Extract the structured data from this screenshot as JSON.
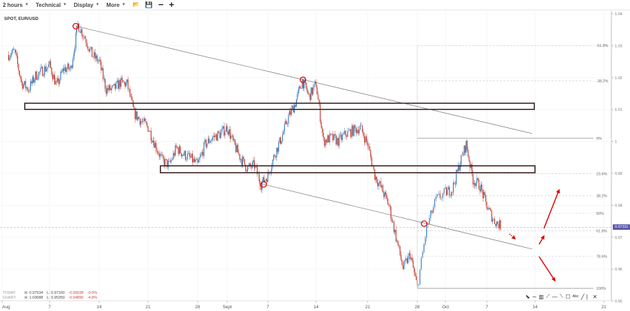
{
  "toolbar": {
    "interval": "2 hours",
    "technical": "Technical",
    "display": "Display",
    "more": "More",
    "icons": [
      "folder-open-icon",
      "save-icon",
      "zoom-out-icon",
      "zoom-in-icon"
    ]
  },
  "chart_header": {
    "symbol": "SPOT, EUR/USD"
  },
  "stats": {
    "today": {
      "label": "TODAY:",
      "high": "H: 0.97534",
      "low": "L: 0.97160",
      "change": "-0.00038",
      "pct": "-0.0%"
    },
    "chart": {
      "label": "CHART:",
      "high": "H: 1.03688",
      "low": "L: 0.95359",
      "change": "-0.04890",
      "pct": "-4.8%"
    }
  },
  "current_price": "0.97311",
  "colors": {
    "up": "#3a7ab8",
    "down": "#c0392b",
    "annotation": "#e00000",
    "price_tag": "#5a5aa8",
    "box": "#3a2020"
  },
  "chart_data": {
    "type": "candlestick",
    "title": "SPOT, EUR/USD",
    "interval": "2 hours",
    "ylim": [
      0.95,
      1.04
    ],
    "y_ticks": [
      "1.04",
      "1.03",
      "1.02",
      "1.01",
      "1",
      "0.99",
      "0.98",
      "0.97",
      "0.96",
      "0.95"
    ],
    "x_ticks": [
      "Aug",
      "7",
      "14",
      "21",
      "28",
      "Sept",
      "7",
      "14",
      "21",
      "28",
      "Oct",
      "7",
      "14",
      "21"
    ],
    "grid": true,
    "price_path": [
      [
        "2022-08-01",
        1.0271
      ],
      [
        "2022-08-02",
        1.0281
      ],
      [
        "2022-08-03",
        1.0184
      ],
      [
        "2022-08-04",
        1.0163
      ],
      [
        "2022-08-05",
        1.0206
      ],
      [
        "2022-08-07",
        1.0238
      ],
      [
        "2022-08-08",
        1.0174
      ],
      [
        "2022-08-09",
        1.0228
      ],
      [
        "2022-08-10",
        1.0228
      ],
      [
        "2022-08-11",
        1.0366
      ],
      [
        "2022-08-12",
        1.0325
      ],
      [
        "2022-08-13",
        1.0271
      ],
      [
        "2022-08-14",
        1.025
      ],
      [
        "2022-08-15",
        1.0163
      ],
      [
        "2022-08-16",
        1.0163
      ],
      [
        "2022-08-17",
        1.0184
      ],
      [
        "2022-08-18",
        1.018
      ],
      [
        "2022-08-19",
        1.0088
      ],
      [
        "2022-08-20",
        1.0065
      ],
      [
        "2022-08-21",
        1.0044
      ],
      [
        "2022-08-22",
        0.999
      ],
      [
        "2022-08-23",
        0.994
      ],
      [
        "2022-08-24",
        0.9926
      ],
      [
        "2022-08-25",
        0.998
      ],
      [
        "2022-08-26",
        0.996
      ],
      [
        "2022-08-27",
        0.9947
      ],
      [
        "2022-08-28",
        0.9926
      ],
      [
        "2022-08-29",
        0.999
      ],
      [
        "2022-08-30",
        1.0012
      ],
      [
        "2022-08-31",
        1.0023
      ],
      [
        "2022-09-01",
        1.0044
      ],
      [
        "2022-09-02",
        0.999
      ],
      [
        "2022-09-03",
        0.9947
      ],
      [
        "2022-09-04",
        0.9915
      ],
      [
        "2022-09-05",
        0.9926
      ],
      [
        "2022-09-06",
        0.9866
      ],
      [
        "2022-09-07",
        0.9894
      ],
      [
        "2022-09-08",
        0.996
      ],
      [
        "2022-09-09",
        1.0012
      ],
      [
        "2022-09-10",
        1.0077
      ],
      [
        "2022-09-11",
        1.012
      ],
      [
        "2022-09-12",
        1.0191
      ],
      [
        "2022-09-13",
        1.0141
      ],
      [
        "2022-09-14",
        1.018
      ],
      [
        "2022-09-15",
        1.0001
      ],
      [
        "2022-09-16",
        1.0012
      ],
      [
        "2022-09-17",
        1.0001
      ],
      [
        "2022-09-18",
        1.0023
      ],
      [
        "2022-09-19",
        1.0034
      ],
      [
        "2022-09-20",
        1.0044
      ],
      [
        "2022-09-21",
        0.9991
      ],
      [
        "2022-09-22",
        0.9894
      ],
      [
        "2022-09-23",
        0.985
      ],
      [
        "2022-09-24",
        0.98
      ],
      [
        "2022-09-25",
        0.97
      ],
      [
        "2022-09-26",
        0.9603
      ],
      [
        "2022-09-27",
        0.9646
      ],
      [
        "2022-09-28",
        0.9542
      ],
      [
        "2022-09-29",
        0.973
      ],
      [
        "2022-09-30",
        0.9818
      ],
      [
        "2022-10-01",
        0.984
      ],
      [
        "2022-10-02",
        0.985
      ],
      [
        "2022-10-03",
        0.9926
      ],
      [
        "2022-10-04",
        0.9991
      ],
      [
        "2022-10-05",
        0.988
      ],
      [
        "2022-10-06",
        0.9861
      ],
      [
        "2022-10-07",
        0.9797
      ],
      [
        "2022-10-08",
        0.9753
      ],
      [
        "2022-10-09",
        0.9736
      ]
    ],
    "fibonacci": {
      "levels": [
        {
          "label": "-61.8%",
          "ratio": -0.618
        },
        {
          "label": "-38.2%",
          "ratio": -0.382
        },
        {
          "label": "0%",
          "ratio": 0
        },
        {
          "label": "23.6%",
          "ratio": 0.236
        },
        {
          "label": "38.2%",
          "ratio": 0.382
        },
        {
          "label": "50%",
          "ratio": 0.5
        },
        {
          "label": "61.8%",
          "ratio": 0.618
        },
        {
          "label": "78.6%",
          "ratio": 0.786
        },
        {
          "label": "100%",
          "ratio": 1
        }
      ],
      "price_0": 1.001,
      "price_100": 0.954
    }
  },
  "drawing_tools": [
    "arrow-tool-icon",
    "curve-tool-icon",
    "fib-tool-icon",
    "fan-tool-icon",
    "horizontal-line-tool-icon",
    "trendline-tool-icon",
    "rectangle-tool-icon",
    "text-tool-icon",
    "line-tool-icon",
    "separator",
    "close-icon"
  ],
  "drawing_tool_glyphs": [
    "⬊",
    "∽",
    "▥",
    "⟋",
    "—",
    "⟍",
    "☐",
    "Abc",
    "╱",
    "|",
    "✕"
  ]
}
